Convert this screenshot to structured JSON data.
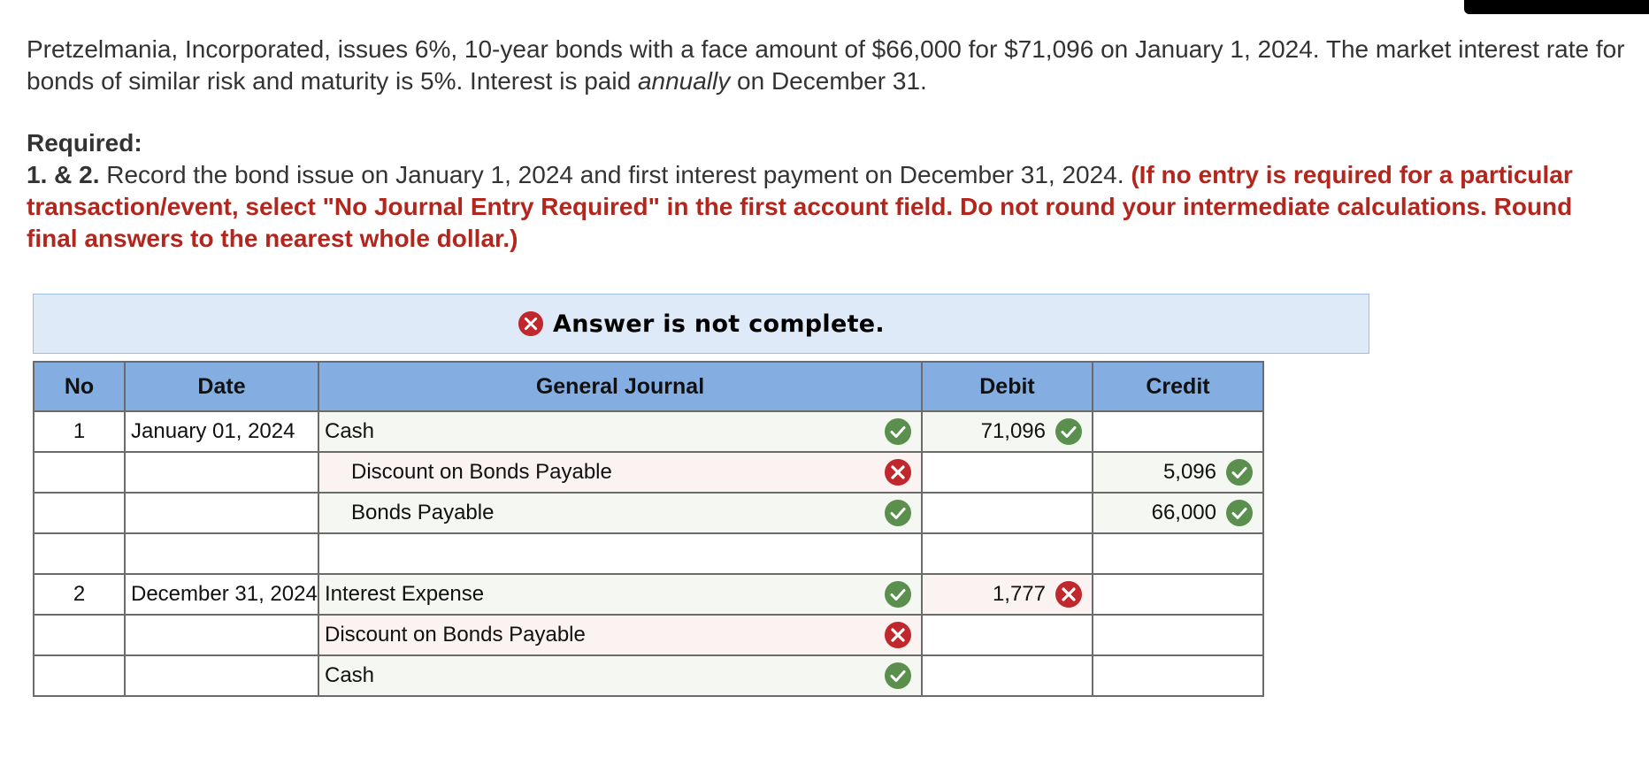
{
  "question": {
    "text_before": "Pretzelmania, Incorporated, issues 6%, 10-year bonds with a face amount of $66,000 for $71,096 on January 1, 2024. The market interest rate for bonds of similar risk and maturity is 5%. Interest is paid ",
    "emphasis": "annually",
    "text_after": " on December 31."
  },
  "required": {
    "heading": "Required:",
    "part_label": "1. & 2.",
    "instruction": " Record the bond issue on January 1, 2024 and first interest payment on December 31, 2024. ",
    "warning": "(If no entry is required for a particular transaction/event, select \"No Journal Entry Required\" in the first account field. Do not round your intermediate calculations. Round final answers to the nearest whole dollar.)"
  },
  "banner": {
    "text": "Answer is not complete."
  },
  "journal": {
    "headers": {
      "no": "No",
      "date": "Date",
      "account": "General Journal",
      "debit": "Debit",
      "credit": "Credit"
    },
    "rows": [
      {
        "no": "1",
        "date": "January 01, 2024",
        "account": "Cash",
        "debit": "71,096",
        "credit": ""
      },
      {
        "no": "",
        "date": "",
        "account": "Discount on Bonds Payable",
        "debit": "",
        "credit": "5,096"
      },
      {
        "no": "",
        "date": "",
        "account": "Bonds Payable",
        "debit": "",
        "credit": "66,000"
      },
      {
        "no": "",
        "date": "",
        "account": "",
        "debit": "",
        "credit": ""
      },
      {
        "no": "2",
        "date": "December 31, 2024",
        "account": "Interest Expense",
        "debit": "1,777",
        "credit": ""
      },
      {
        "no": "",
        "date": "",
        "account": "Discount on Bonds Payable",
        "debit": "",
        "credit": ""
      },
      {
        "no": "",
        "date": "",
        "account": "Cash",
        "debit": "",
        "credit": ""
      }
    ]
  },
  "colors": {
    "correct": "#5b8f4e",
    "incorrect": "#c0282d",
    "header_bg": "#84aee2",
    "banner_bg": "#deeaf7",
    "warning_text": "#b3261e"
  }
}
